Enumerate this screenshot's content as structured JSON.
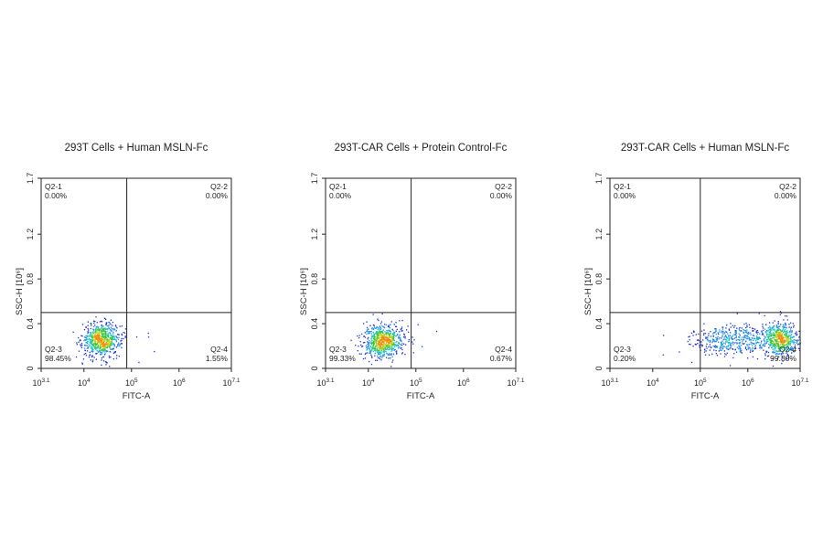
{
  "chart_data": [
    {
      "type": "scatter",
      "title": "293T Cells + Human MSLN-Fc",
      "xlabel": "FITC-A",
      "ylabel": "SSC-H [10⁶]",
      "x_scale": "log",
      "xlim": [
        3.1,
        7.1
      ],
      "ylim": [
        0,
        1.7
      ],
      "x_ticks": [
        {
          "value": 3.1,
          "base": "10",
          "exp": "3.1"
        },
        {
          "value": 4,
          "base": "10",
          "exp": "4"
        },
        {
          "value": 5,
          "base": "10",
          "exp": "5"
        },
        {
          "value": 6,
          "base": "10",
          "exp": "6"
        },
        {
          "value": 7.1,
          "base": "10",
          "exp": "7.1"
        }
      ],
      "y_ticks": [
        {
          "value": 0,
          "label": "0"
        },
        {
          "value": 0.4,
          "label": "0.4"
        },
        {
          "value": 0.8,
          "label": "0.8"
        },
        {
          "value": 1.2,
          "label": "1.2"
        },
        {
          "value": 1.7,
          "label": "1.7"
        }
      ],
      "gate": {
        "x": 4.9,
        "y": 0.5
      },
      "quadrants": [
        {
          "name": "Q2-1",
          "value": "0.00%"
        },
        {
          "name": "Q2-2",
          "value": "0.00%"
        },
        {
          "name": "Q2-3",
          "value": "98.45%"
        },
        {
          "name": "Q2-4",
          "value": "1.55%"
        }
      ],
      "populations": [
        {
          "x": 4.35,
          "y": 0.26,
          "sx": 0.2,
          "sy": 0.075,
          "n": 700
        },
        {
          "x": 5.0,
          "y": 0.26,
          "sx": 0.55,
          "sy": 0.06,
          "n": 14
        }
      ]
    },
    {
      "type": "scatter",
      "title": "293T-CAR Cells + Protein Control-Fc",
      "xlabel": "FITC-A",
      "ylabel": "SSC-H [10⁶]",
      "x_scale": "log",
      "xlim": [
        3.1,
        7.1
      ],
      "ylim": [
        0,
        1.7
      ],
      "x_ticks": [
        {
          "value": 3.1,
          "base": "10",
          "exp": "3.1"
        },
        {
          "value": 4,
          "base": "10",
          "exp": "4"
        },
        {
          "value": 5,
          "base": "10",
          "exp": "5"
        },
        {
          "value": 6,
          "base": "10",
          "exp": "6"
        },
        {
          "value": 7.1,
          "base": "10",
          "exp": "7.1"
        }
      ],
      "y_ticks": [
        {
          "value": 0,
          "label": "0"
        },
        {
          "value": 0.4,
          "label": "0.4"
        },
        {
          "value": 0.8,
          "label": "0.8"
        },
        {
          "value": 1.2,
          "label": "1.2"
        },
        {
          "value": 1.7,
          "label": "1.7"
        }
      ],
      "gate": {
        "x": 4.9,
        "y": 0.5
      },
      "quadrants": [
        {
          "name": "Q2-1",
          "value": "0.00%"
        },
        {
          "name": "Q2-2",
          "value": "0.00%"
        },
        {
          "name": "Q2-3",
          "value": "99.33%"
        },
        {
          "name": "Q2-4",
          "value": "0.67%"
        }
      ],
      "populations": [
        {
          "x": 4.3,
          "y": 0.25,
          "sx": 0.2,
          "sy": 0.075,
          "n": 700
        },
        {
          "x": 4.85,
          "y": 0.3,
          "sx": 0.25,
          "sy": 0.06,
          "n": 10
        }
      ]
    },
    {
      "type": "scatter",
      "title": "293T-CAR Cells + Human MSLN-Fc",
      "xlabel": "FITC-A",
      "ylabel": "SSC-H [10⁶]",
      "x_scale": "log",
      "xlim": [
        3.1,
        7.1
      ],
      "ylim": [
        0,
        1.7
      ],
      "x_ticks": [
        {
          "value": 3.1,
          "base": "10",
          "exp": "3.1"
        },
        {
          "value": 4,
          "base": "10",
          "exp": "4"
        },
        {
          "value": 5,
          "base": "10",
          "exp": "5"
        },
        {
          "value": 6,
          "base": "10",
          "exp": "6"
        },
        {
          "value": 7.1,
          "base": "10",
          "exp": "7.1"
        }
      ],
      "y_ticks": [
        {
          "value": 0,
          "label": "0"
        },
        {
          "value": 0.4,
          "label": "0.4"
        },
        {
          "value": 0.8,
          "label": "0.8"
        },
        {
          "value": 1.2,
          "label": "1.2"
        },
        {
          "value": 1.7,
          "label": "1.7"
        }
      ],
      "gate": {
        "x": 5.0,
        "y": 0.5
      },
      "quadrants": [
        {
          "name": "Q2-1",
          "value": "0.00%"
        },
        {
          "name": "Q2-2",
          "value": "0.00%"
        },
        {
          "name": "Q2-3",
          "value": "0.20%"
        },
        {
          "name": "Q2-4",
          "value": "99.80%"
        }
      ],
      "populations": [
        {
          "x": 6.7,
          "y": 0.26,
          "sx": 0.18,
          "sy": 0.08,
          "n": 500
        },
        {
          "x": 5.9,
          "y": 0.26,
          "sx": 0.5,
          "sy": 0.07,
          "n": 450
        },
        {
          "x": 5.3,
          "y": 0.25,
          "sx": 0.25,
          "sy": 0.06,
          "n": 90
        }
      ]
    }
  ]
}
